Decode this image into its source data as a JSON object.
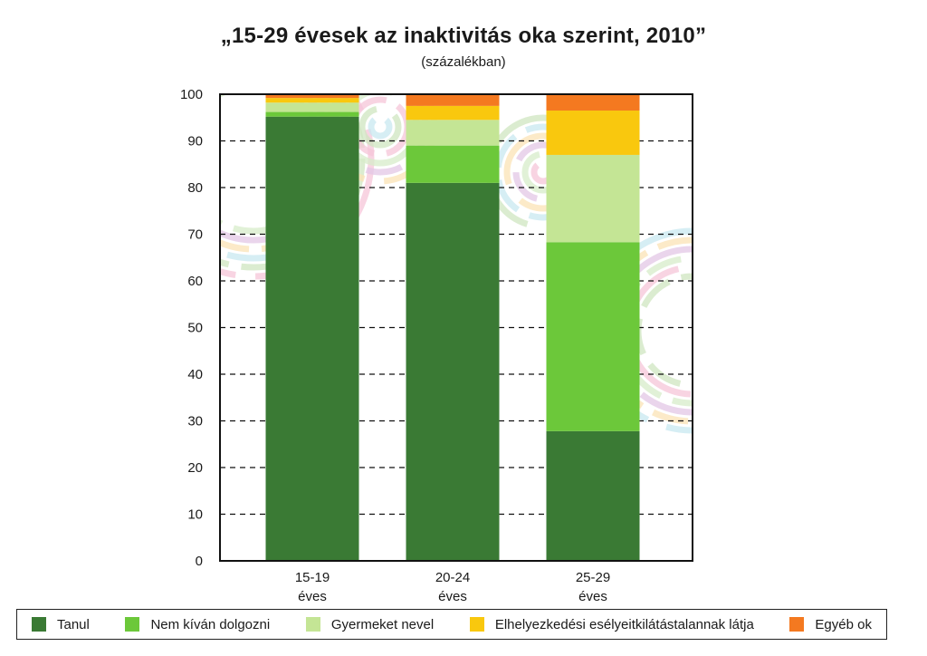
{
  "chart_data": {
    "type": "bar",
    "stacked": true,
    "title": "„15-29 évesek az inaktivitás oka szerint, 2010”",
    "subtitle": "(százalékban)",
    "ylim": [
      0,
      100
    ],
    "yticks": [
      0,
      10,
      20,
      30,
      40,
      50,
      60,
      70,
      80,
      90,
      100
    ],
    "grid": "dashed horizontal",
    "categories": [
      [
        "15-19",
        "éves"
      ],
      [
        "20-24",
        "éves"
      ],
      [
        "25-29",
        "éves"
      ]
    ],
    "series": [
      {
        "name": "Tanul",
        "color": "#3a7a34",
        "values": [
          95.2,
          81.0,
          27.8
        ]
      },
      {
        "name": "Nem kíván dolgozni",
        "color": "#6cc83a",
        "values": [
          1.0,
          8.0,
          40.5
        ]
      },
      {
        "name": "Gyermeket nevel",
        "color": "#c4e595",
        "values": [
          2.0,
          5.5,
          18.7
        ]
      },
      {
        "name": "Elhelyezkedési esélyeitkilátástalannak látja",
        "color": "#f9c80e",
        "values": [
          1.0,
          3.0,
          9.5
        ]
      },
      {
        "name": "Egyéb ok",
        "color": "#f47920",
        "values": [
          0.8,
          2.5,
          3.5
        ]
      }
    ],
    "legend_position": "bottom"
  }
}
